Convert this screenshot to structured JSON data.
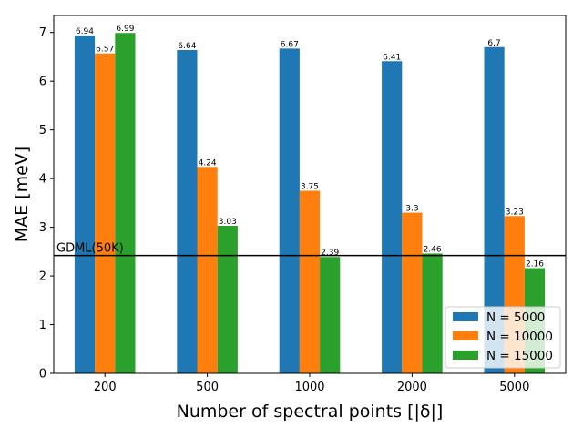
{
  "chart_data": {
    "type": "bar",
    "title": "",
    "xlabel": "Number of spectral points [|δ|]",
    "ylabel": "MAE [meV]",
    "categories": [
      "200",
      "500",
      "1000",
      "2000",
      "5000"
    ],
    "ylim": [
      0,
      7.35
    ],
    "yticks": [
      "0",
      "1",
      "2",
      "3",
      "4",
      "5",
      "6",
      "7"
    ],
    "series": [
      {
        "name": "N = 5000",
        "color": "#1f77b4",
        "values": [
          6.94,
          6.64,
          6.67,
          6.41,
          6.7
        ],
        "labels": [
          "6.94",
          "6.64",
          "6.67",
          "6.41",
          "6.7"
        ]
      },
      {
        "name": "N = 10000",
        "color": "#ff7f0e",
        "values": [
          6.57,
          4.24,
          3.75,
          3.3,
          3.23
        ],
        "labels": [
          "6.57",
          "4.24",
          "3.75",
          "3.3",
          "3.23"
        ]
      },
      {
        "name": "N = 15000",
        "color": "#2ca02c",
        "values": [
          6.99,
          3.03,
          2.39,
          2.46,
          2.16
        ],
        "labels": [
          "6.99",
          "3.03",
          "2.39",
          "2.46",
          "2.16"
        ]
      }
    ],
    "reference_line": {
      "label": "GDML(50K)",
      "value": 2.42,
      "color": "#000000"
    },
    "grid": false,
    "legend_position": "lower-right"
  }
}
